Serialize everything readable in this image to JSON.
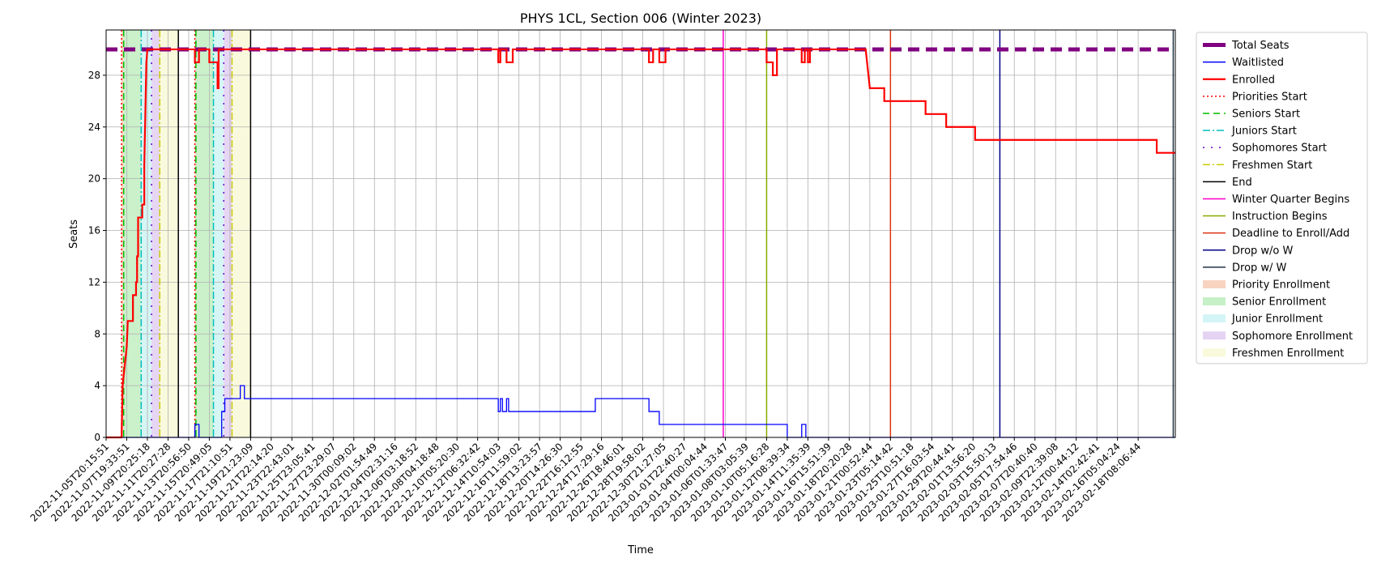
{
  "chart_data": {
    "type": "line",
    "title": "PHYS 1CL, Section 006 (Winter 2023)",
    "xlabel": "Time",
    "ylabel": "Seats",
    "x_ticks": [
      "2022-11-05T20:15:51",
      "2022-11-07T19:33:51",
      "2022-11-09T20:25:18",
      "2022-11-11T20:27:28",
      "2022-11-13T20:56:50",
      "2022-11-15T20:49:05",
      "2022-11-17T21:10:51",
      "2022-11-19T21:23:09",
      "2022-11-21T22:14:20",
      "2022-11-23T22:43:01",
      "2022-11-25T23:05:41",
      "2022-11-27T23:29:07",
      "2022-11-30T00:09:02",
      "2022-12-02T01:54:49",
      "2022-12-04T02:31:16",
      "2022-12-06T03:18:52",
      "2022-12-08T04:18:48",
      "2022-12-10T05:20:30",
      "2022-12-12T06:32:42",
      "2022-12-14T10:54:03",
      "2022-12-16T11:59:02",
      "2022-12-18T13:23:57",
      "2022-12-20T14:26:30",
      "2022-12-22T16:12:55",
      "2022-12-24T17:29:16",
      "2022-12-26T18:46:01",
      "2022-12-28T19:58:02",
      "2022-12-30T21:27:05",
      "2023-01-01T22:40:27",
      "2023-01-04T00:04:44",
      "2023-01-06T01:33:47",
      "2023-01-08T03:05:39",
      "2023-01-10T05:16:28",
      "2023-01-12T08:39:34",
      "2023-01-14T11:35:39",
      "2023-01-16T15:51:39",
      "2023-01-18T20:20:28",
      "2023-01-21T00:52:44",
      "2023-01-23T05:14:42",
      "2023-01-25T10:51:18",
      "2023-01-27T16:03:54",
      "2023-01-29T20:44:41",
      "2023-02-01T13:56:20",
      "2023-02-03T15:50:13",
      "2023-02-05T17:54:46",
      "2023-02-07T20:40:40",
      "2023-02-09T22:39:08",
      "2023-02-12T00:44:12",
      "2023-02-14T02:42:41",
      "2023-02-16T05:04:24",
      "2023-02-18T08:06:44"
    ],
    "y_ticks": [
      "0",
      "4",
      "8",
      "12",
      "16",
      "20",
      "24",
      "28"
    ],
    "xlim": [
      0,
      51.8
    ],
    "ylim": [
      0,
      31.5
    ],
    "grid": true,
    "legend_placement": "outside-right",
    "series": [
      {
        "name": "Total Seats",
        "color": "#800080",
        "style": "dashed-thick",
        "points": [
          [
            0,
            30
          ],
          [
            51.8,
            30
          ]
        ]
      },
      {
        "name": "Waitlisted",
        "color": "#0000ff",
        "style": "solid",
        "points": [
          [
            0,
            0
          ],
          [
            4.3,
            0
          ],
          [
            4.3,
            1
          ],
          [
            4.5,
            1
          ],
          [
            4.5,
            0
          ],
          [
            5.6,
            0
          ],
          [
            5.6,
            2
          ],
          [
            5.75,
            2
          ],
          [
            5.75,
            3
          ],
          [
            6.5,
            3
          ],
          [
            6.5,
            4
          ],
          [
            6.7,
            4
          ],
          [
            6.7,
            3
          ],
          [
            19.0,
            3
          ],
          [
            19.0,
            2
          ],
          [
            19.1,
            2
          ],
          [
            19.1,
            3
          ],
          [
            19.2,
            3
          ],
          [
            19.2,
            2
          ],
          [
            19.4,
            2
          ],
          [
            19.4,
            3
          ],
          [
            19.5,
            3
          ],
          [
            19.5,
            2
          ],
          [
            23.7,
            2
          ],
          [
            23.7,
            3
          ],
          [
            26.3,
            3
          ],
          [
            26.3,
            2
          ],
          [
            26.8,
            2
          ],
          [
            26.8,
            1
          ],
          [
            33.0,
            1
          ],
          [
            33.0,
            0
          ],
          [
            33.7,
            0
          ],
          [
            33.7,
            1
          ],
          [
            33.9,
            1
          ],
          [
            33.9,
            0
          ],
          [
            51.8,
            0
          ]
        ]
      },
      {
        "name": "Enrolled",
        "color": "#ff0000",
        "style": "solid-thick",
        "points": [
          [
            0,
            0
          ],
          [
            0.75,
            0
          ],
          [
            0.8,
            4
          ],
          [
            1.0,
            7
          ],
          [
            1.05,
            9
          ],
          [
            1.3,
            9
          ],
          [
            1.3,
            11
          ],
          [
            1.45,
            11
          ],
          [
            1.45,
            12
          ],
          [
            1.5,
            12
          ],
          [
            1.5,
            14
          ],
          [
            1.55,
            14
          ],
          [
            1.55,
            17
          ],
          [
            1.75,
            17
          ],
          [
            1.75,
            18
          ],
          [
            1.85,
            18
          ],
          [
            1.85,
            21
          ],
          [
            1.9,
            25
          ],
          [
            1.95,
            29
          ],
          [
            2.0,
            30
          ],
          [
            4.3,
            30
          ],
          [
            4.3,
            29
          ],
          [
            4.5,
            29
          ],
          [
            4.5,
            30
          ],
          [
            5.0,
            30
          ],
          [
            5.0,
            29
          ],
          [
            5.4,
            29
          ],
          [
            5.4,
            27
          ],
          [
            5.45,
            27
          ],
          [
            5.45,
            30
          ],
          [
            19.0,
            30
          ],
          [
            19.0,
            29
          ],
          [
            19.1,
            29
          ],
          [
            19.1,
            30
          ],
          [
            19.4,
            30
          ],
          [
            19.4,
            29
          ],
          [
            19.7,
            29
          ],
          [
            19.7,
            30
          ],
          [
            26.3,
            30
          ],
          [
            26.3,
            29
          ],
          [
            26.5,
            29
          ],
          [
            26.5,
            30
          ],
          [
            26.8,
            30
          ],
          [
            26.8,
            29
          ],
          [
            27.1,
            29
          ],
          [
            27.1,
            30
          ],
          [
            32.0,
            30
          ],
          [
            32.0,
            29
          ],
          [
            32.3,
            29
          ],
          [
            32.3,
            28
          ],
          [
            32.5,
            28
          ],
          [
            32.5,
            30
          ],
          [
            33.7,
            30
          ],
          [
            33.7,
            29
          ],
          [
            33.85,
            29
          ],
          [
            33.85,
            30
          ],
          [
            34.0,
            30
          ],
          [
            34.0,
            29
          ],
          [
            34.1,
            29
          ],
          [
            34.1,
            30
          ],
          [
            36.8,
            30
          ],
          [
            37.0,
            27
          ],
          [
            37.7,
            27
          ],
          [
            37.7,
            26
          ],
          [
            39.7,
            26
          ],
          [
            39.7,
            25
          ],
          [
            40.7,
            25
          ],
          [
            40.7,
            24
          ],
          [
            42.1,
            24
          ],
          [
            42.1,
            23
          ],
          [
            50.9,
            23
          ],
          [
            50.9,
            22
          ],
          [
            51.8,
            22
          ]
        ]
      },
      {
        "name": "Priorities Start",
        "color": "#ff0000",
        "style": "dotted",
        "vlines": [
          0.75,
          4.3
        ]
      },
      {
        "name": "Seniors Start",
        "color": "#00bb00",
        "style": "dashed",
        "vlines": [
          0.85,
          4.35
        ]
      },
      {
        "name": "Juniors Start",
        "color": "#00bfbf",
        "style": "dashdot",
        "vlines": [
          1.7,
          5.2
        ]
      },
      {
        "name": "Sophomores Start",
        "color": "#6600cc",
        "style": "dashdotted",
        "vlines": [
          2.2,
          5.7
        ]
      },
      {
        "name": "Freshmen Start",
        "color": "#cccc00",
        "style": "dashdot",
        "vlines": [
          2.6,
          6.1
        ]
      },
      {
        "name": "End",
        "color": "#000000",
        "style": "solid",
        "vlines": [
          3.5,
          7.0
        ]
      },
      {
        "name": "Winter Quarter Begins",
        "color": "#ff00cc",
        "style": "solid",
        "vlines": [
          29.9
        ]
      },
      {
        "name": "Instruction Begins",
        "color": "#88aa00",
        "style": "solid",
        "vlines": [
          32.0
        ]
      },
      {
        "name": "Deadline to Enroll/Add",
        "color": "#dd3311",
        "style": "solid",
        "vlines": [
          38.0
        ]
      },
      {
        "name": "Drop w/o W",
        "color": "#000088",
        "style": "solid",
        "vlines": [
          43.3
        ]
      },
      {
        "name": "Drop w/ W",
        "color": "#223344",
        "style": "solid",
        "vlines": [
          51.7
        ]
      }
    ],
    "spans": [
      {
        "name": "Priority Enrollment",
        "color": "#f5c8b0",
        "ranges": [
          [
            0.75,
            0.85
          ],
          [
            4.3,
            4.35
          ]
        ]
      },
      {
        "name": "Senior Enrollment",
        "color": "#b8ecb8",
        "ranges": [
          [
            0.85,
            1.7
          ],
          [
            4.35,
            5.2
          ]
        ]
      },
      {
        "name": "Junior Enrollment",
        "color": "#c8f2f2",
        "ranges": [
          [
            1.7,
            2.2
          ],
          [
            5.2,
            5.7
          ]
        ]
      },
      {
        "name": "Sophomore Enrollment",
        "color": "#ddc8f0",
        "ranges": [
          [
            2.2,
            2.6
          ],
          [
            5.7,
            6.1
          ]
        ]
      },
      {
        "name": "Freshmen Enrollment",
        "color": "#f7f7d2",
        "ranges": [
          [
            2.6,
            3.5
          ],
          [
            6.1,
            7.0
          ]
        ]
      }
    ]
  }
}
